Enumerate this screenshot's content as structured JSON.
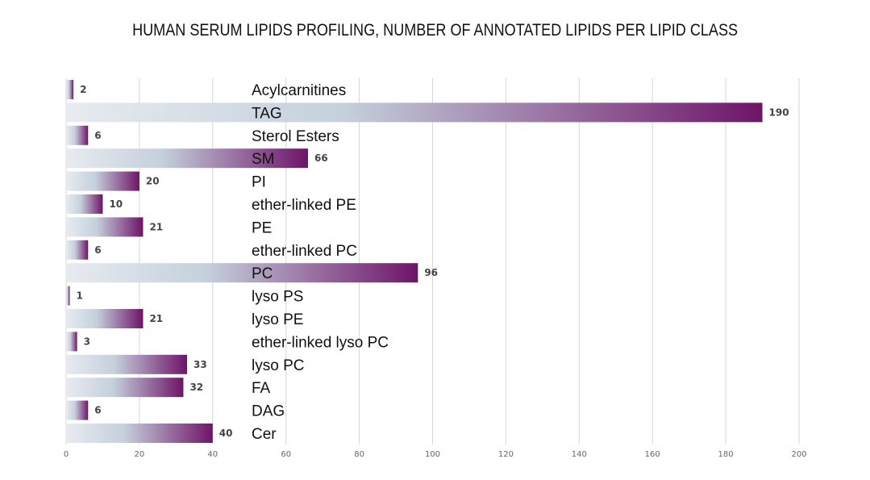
{
  "chart_data": {
    "type": "bar",
    "orientation": "horizontal",
    "title": "HUMAN SERUM LIPIDS PROFILING, NUMBER OF ANNOTATED LIPIDS PER LIPID CLASS",
    "xlabel": "",
    "ylabel": "",
    "xlim": [
      0,
      200
    ],
    "xticks": [
      0,
      20,
      40,
      60,
      80,
      100,
      120,
      140,
      160,
      180,
      200
    ],
    "grid": true,
    "categories": [
      "Acylcarnitines",
      "TAG",
      "Sterol Esters",
      "SM",
      "PI",
      "ether-linked PE",
      "PE",
      "ether-linked PC",
      "PC",
      "lyso PS",
      "lyso PE",
      "ether-linked lyso PC",
      "lyso PC",
      "FA",
      "DAG",
      "Cer"
    ],
    "values": [
      2,
      190,
      6,
      66,
      20,
      10,
      21,
      6,
      96,
      1,
      21,
      3,
      33,
      32,
      6,
      40
    ],
    "colors": {
      "gradient_start": "#e8ebf0",
      "gradient_mid": "#c4d0dc",
      "gradient_end": "#6e1468",
      "grid": "#d6d6d6"
    }
  }
}
